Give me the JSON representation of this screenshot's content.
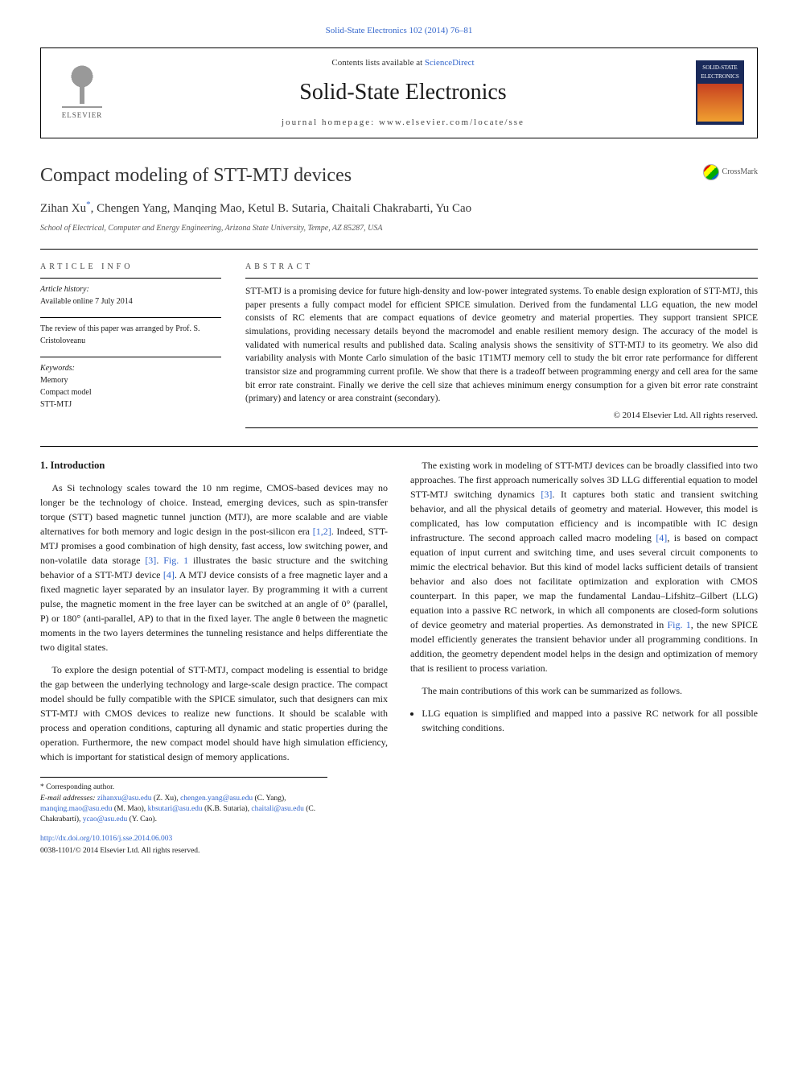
{
  "top_link": "Solid-State Electronics 102 (2014) 76–81",
  "header": {
    "contents_prefix": "Contents lists available at ",
    "contents_link": "ScienceDirect",
    "journal_title": "Solid-State Electronics",
    "homepage_label": "journal homepage: www.elsevier.com/locate/sse",
    "publisher": "ELSEVIER",
    "cover_text": "SOLID-STATE ELECTRONICS"
  },
  "article": {
    "title": "Compact modeling of STT-MTJ devices",
    "crossmark": "CrossMark",
    "authors_prefix": "Zihan Xu",
    "corr_symbol": "*",
    "authors_rest": ", Chengen Yang, Manqing Mao, Ketul B. Sutaria, Chaitali Chakrabarti, Yu Cao",
    "affiliation": "School of Electrical, Computer and Energy Engineering, Arizona State University, Tempe, AZ 85287, USA"
  },
  "info": {
    "heading": "ARTICLE INFO",
    "history_label": "Article history:",
    "history_value": "Available online 7 July 2014",
    "review_note": "The review of this paper was arranged by Prof. S. Cristoloveanu",
    "keywords_label": "Keywords:",
    "keywords": [
      "Memory",
      "Compact model",
      "STT-MTJ"
    ]
  },
  "abstract": {
    "heading": "ABSTRACT",
    "text": "STT-MTJ is a promising device for future high-density and low-power integrated systems. To enable design exploration of STT-MTJ, this paper presents a fully compact model for efficient SPICE simulation. Derived from the fundamental LLG equation, the new model consists of RC elements that are compact equations of device geometry and material properties. They support transient SPICE simulations, providing necessary details beyond the macromodel and enable resilient memory design. The accuracy of the model is validated with numerical results and published data. Scaling analysis shows the sensitivity of STT-MTJ to its geometry. We also did variability analysis with Monte Carlo simulation of the basic 1T1MTJ memory cell to study the bit error rate performance for different transistor size and programming current profile. We show that there is a tradeoff between programming energy and cell area for the same bit error rate constraint. Finally we derive the cell size that achieves minimum energy consumption for a given bit error rate constraint (primary) and latency or area constraint (secondary).",
    "copyright": "© 2014 Elsevier Ltd. All rights reserved."
  },
  "section1": {
    "heading": "1. Introduction",
    "p1a": "As Si technology scales toward the 10 nm regime, CMOS-based devices may no longer be the technology of choice. Instead, emerging devices, such as spin-transfer torque (STT) based magnetic tunnel junction (MTJ), are more scalable and are viable alternatives for both memory and logic design in the post-silicon era ",
    "p1_cite1": "[1,2]",
    "p1b": ". Indeed, STT-MTJ promises a good combination of high density, fast access, low switching power, and non-volatile data storage ",
    "p1_cite2": "[3]",
    "p1c": ". ",
    "p1_fig": "Fig. 1",
    "p1d": " illustrates the basic structure and the switching behavior of a STT-MTJ device ",
    "p1_cite3": "[4]",
    "p1e": ". A MTJ device consists of a free magnetic layer and a fixed magnetic layer separated by an insulator layer. By programming it with a current pulse, the magnetic moment in the free layer can be switched at an angle of 0° (parallel, P) or 180° (anti-parallel, AP) to that in the fixed layer. The angle θ between the magnetic moments in the two layers determines the tunneling resistance and helps differentiate the two digital states.",
    "p2": "To explore the design potential of STT-MTJ, compact modeling is essential to bridge the gap between the underlying technology and large-scale design practice. The compact model should be fully compatible with the SPICE simulator, such that designers can mix STT-MTJ with CMOS devices to realize new functions. It should be scalable with process and operation conditions, capturing all dynamic and static properties during the operation. Furthermore, the new compact model should have high simulation efficiency, which is important for statistical design of memory applications.",
    "p3a": "The existing work in modeling of STT-MTJ devices can be broadly classified into two approaches. The first approach numerically solves 3D LLG differential equation to model STT-MTJ switching dynamics ",
    "p3_cite1": "[3]",
    "p3b": ". It captures both static and transient switching behavior, and all the physical details of geometry and material. However, this model is complicated, has low computation efficiency and is incompatible with IC design infrastructure. The second approach called macro modeling ",
    "p3_cite2": "[4]",
    "p3c": ", is based on compact equation of input current and switching time, and uses several circuit components to mimic the electrical behavior. But this kind of model lacks sufficient details of transient behavior and also does not facilitate optimization and exploration with CMOS counterpart. In this paper, we map the fundamental Landau–Lifshitz–Gilbert (LLG) equation into a passive RC network, in which all components are closed-form solutions of device geometry and material properties. As demonstrated in ",
    "p3_fig": "Fig. 1",
    "p3d": ", the new SPICE model efficiently generates the transient behavior under all programming conditions. In addition, the geometry dependent model helps in the design and optimization of memory that is resilient to process variation.",
    "p4": "The main contributions of this work can be summarized as follows.",
    "bullet1": "LLG equation is simplified and mapped into a passive RC network for all possible switching conditions."
  },
  "footnotes": {
    "corr": "* Corresponding author.",
    "emails_label": "E-mail addresses: ",
    "emails": [
      {
        "addr": "zihanxu@asu.edu",
        "name": " (Z. Xu), "
      },
      {
        "addr": "chengen.yang@asu.edu",
        "name": " (C. Yang), "
      },
      {
        "addr": "manqing.mao@asu.edu",
        "name": " (M. Mao), "
      },
      {
        "addr": "kbsutari@asu.edu",
        "name": " (K.B. Sutaria), "
      },
      {
        "addr": "chaitali@asu.edu",
        "name": " (C. Chakrabarti), "
      },
      {
        "addr": "ycao@asu.edu",
        "name": " (Y. Cao)."
      }
    ]
  },
  "doi": {
    "url": "http://dx.doi.org/10.1016/j.sse.2014.06.003",
    "issn_line": "0038-1101/© 2014 Elsevier Ltd. All rights reserved."
  },
  "colors": {
    "link": "#3366cc",
    "text": "#1a1a1a",
    "bg": "#ffffff",
    "cover_bg": "#1a2a5a"
  }
}
